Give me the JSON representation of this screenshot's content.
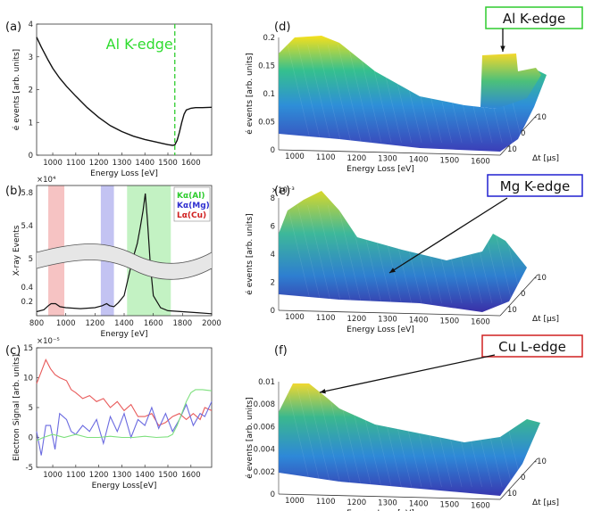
{
  "panel_labels": [
    "(a)",
    "(b)",
    "(c)",
    "(d)",
    "(e)",
    "(f)"
  ],
  "chart_data": [
    {
      "id": "a",
      "type": "line",
      "xlabel": "Energy Loss [eV]",
      "ylabel": "é events [arb. units]",
      "xlim": [
        930,
        1690
      ],
      "ylim": [
        0,
        4
      ],
      "xticks": [
        1000,
        1100,
        1200,
        1300,
        1400,
        1500,
        1600
      ],
      "yticks": [
        0,
        1,
        2,
        3,
        4
      ],
      "annotation": "Al K-edge",
      "edge_x": 1530,
      "series": [
        {
          "name": "spectrum",
          "x": [
            930,
            950,
            980,
            1000,
            1030,
            1060,
            1100,
            1150,
            1200,
            1250,
            1300,
            1350,
            1400,
            1450,
            1480,
            1500,
            1520,
            1530,
            1540,
            1550,
            1560,
            1570,
            1580,
            1600,
            1620,
            1650,
            1690
          ],
          "y": [
            3.6,
            3.3,
            2.9,
            2.65,
            2.35,
            2.1,
            1.8,
            1.45,
            1.15,
            0.9,
            0.72,
            0.58,
            0.48,
            0.4,
            0.35,
            0.32,
            0.3,
            0.31,
            0.45,
            0.7,
            1.0,
            1.25,
            1.38,
            1.43,
            1.45,
            1.45,
            1.46
          ]
        }
      ]
    },
    {
      "id": "b",
      "type": "line",
      "xlabel": "Energy [eV]",
      "ylabel": "X-ray Events",
      "xlim": [
        800,
        2000
      ],
      "xticks": [
        800,
        1000,
        1200,
        1400,
        1600,
        1800,
        2000
      ],
      "ytick_labels_upper": [
        "5.8",
        "5.4",
        "5"
      ],
      "ytick_labels_lower": [
        "0.4",
        "0.2"
      ],
      "exponent": "×10⁴",
      "bands": [
        {
          "name": "L_α(Cu)",
          "from": 880,
          "to": 990,
          "color": "#f4b8b8"
        },
        {
          "name": "K_α(Mg)",
          "from": 1240,
          "to": 1330,
          "color": "#b8b8f0"
        },
        {
          "name": "K_α(Al)",
          "from": 1420,
          "to": 1720,
          "color": "#b8f0b8"
        }
      ],
      "legend": [
        {
          "label": "Kα(Al)",
          "color": "#2fcc2f"
        },
        {
          "label": "Kα(Mg)",
          "color": "#2f2fd0"
        },
        {
          "label": "Lα(Cu)",
          "color": "#d02020"
        }
      ],
      "series": [
        {
          "name": "xray",
          "x": [
            800,
            850,
            880,
            900,
            930,
            960,
            1000,
            1100,
            1200,
            1250,
            1280,
            1300,
            1330,
            1360,
            1400,
            1440,
            1470,
            1490,
            1510,
            1530,
            1545,
            1560,
            1580,
            1600,
            1650,
            1700,
            1800,
            1900,
            2000
          ],
          "y": [
            0.04,
            0.06,
            0.1,
            0.12,
            0.12,
            0.09,
            0.08,
            0.07,
            0.08,
            0.1,
            0.12,
            0.1,
            0.09,
            0.13,
            0.2,
            0.45,
            0.62,
            0.72,
            0.88,
            1.05,
            1.22,
            0.95,
            0.5,
            0.2,
            0.08,
            0.05,
            0.04,
            0.03,
            0.02
          ],
          "note": "y in normalized display units (axis has a break)"
        }
      ]
    },
    {
      "id": "c",
      "type": "line",
      "xlabel": "Energy Loss[eV]",
      "ylabel": "Electron Signal [arb. units]",
      "xlim": [
        930,
        1690
      ],
      "ylim": [
        -5,
        15
      ],
      "xticks": [
        1000,
        1100,
        1200,
        1300,
        1400,
        1500,
        1600
      ],
      "yticks": [
        -5,
        0,
        5,
        10,
        15
      ],
      "exponent": "×10⁻⁵",
      "series": [
        {
          "name": "red",
          "color": "#e85a5a",
          "x": [
            930,
            950,
            970,
            990,
            1010,
            1030,
            1060,
            1080,
            1100,
            1130,
            1160,
            1190,
            1220,
            1250,
            1280,
            1310,
            1340,
            1370,
            1400,
            1430,
            1460,
            1490,
            1520,
            1550,
            1580,
            1610,
            1640,
            1660,
            1690
          ],
          "y": [
            9,
            11,
            13,
            11.5,
            10.5,
            10,
            9.5,
            8,
            7.5,
            6.5,
            7,
            6,
            6.5,
            5,
            6,
            4.5,
            5.5,
            3.5,
            3.5,
            4,
            2,
            2.5,
            3.5,
            4,
            3,
            4,
            3,
            5,
            4.5
          ]
        },
        {
          "name": "blue",
          "color": "#6a6ae0",
          "x": [
            930,
            950,
            970,
            990,
            1010,
            1030,
            1060,
            1080,
            1100,
            1130,
            1160,
            1190,
            1220,
            1250,
            1280,
            1310,
            1340,
            1370,
            1400,
            1430,
            1460,
            1490,
            1520,
            1550,
            1580,
            1610,
            1640,
            1660,
            1690
          ],
          "y": [
            1,
            -3,
            2,
            2,
            -2,
            4,
            3,
            1,
            0.5,
            2,
            1,
            3,
            -1,
            3.5,
            1,
            4,
            0,
            3,
            2,
            5,
            1.5,
            4,
            1,
            3,
            5.5,
            2,
            4,
            3.5,
            6
          ]
        },
        {
          "name": "green",
          "color": "#7de07d",
          "x": [
            930,
            960,
            1000,
            1050,
            1100,
            1150,
            1200,
            1250,
            1300,
            1350,
            1400,
            1450,
            1500,
            1520,
            1540,
            1560,
            1580,
            1600,
            1620,
            1650,
            1690
          ],
          "y": [
            -0.5,
            0,
            0.5,
            0,
            0.5,
            0,
            0,
            0.2,
            0,
            0,
            0.2,
            0,
            0.1,
            0.5,
            2,
            4,
            6,
            7.5,
            8,
            8,
            7.8
          ]
        }
      ]
    },
    {
      "id": "d",
      "type": "surface",
      "xlabel": "Energy Loss [eV]",
      "ylabel": "é events [arb. units]",
      "zlabel": "Δt [μs]",
      "xticks": [
        1000,
        1100,
        1200,
        1300,
        1400,
        1500,
        1600
      ],
      "yticks": [
        0,
        0.05,
        0.1,
        0.15,
        0.2
      ],
      "dticks": [
        -10,
        0,
        10
      ],
      "annotation": "Al K-edge",
      "annotation_color": "#2fcc2f"
    },
    {
      "id": "e",
      "type": "surface",
      "xlabel": "Energy Loss [eV]",
      "ylabel": "é events [arb. units]",
      "zlabel": "Δt [μs]",
      "xticks": [
        1000,
        1100,
        1200,
        1300,
        1400,
        1500,
        1600
      ],
      "yticks": [
        0,
        2,
        4,
        6,
        8
      ],
      "dticks": [
        -10,
        0,
        10
      ],
      "exponent": "×10⁻³",
      "annotation": "Mg K-edge",
      "annotation_color": "#2020d0"
    },
    {
      "id": "f",
      "type": "surface",
      "xlabel": "Energy Loss [eV]",
      "ylabel": "é events [arb. units]",
      "zlabel": "Δt [μs]",
      "xticks": [
        1000,
        1100,
        1200,
        1300,
        1400,
        1500,
        1600
      ],
      "yticks": [
        0,
        0.002,
        0.004,
        0.006,
        0.008,
        0.01
      ],
      "dticks": [
        -10,
        0,
        10
      ],
      "annotation": "Cu L-edge",
      "annotation_color": "#d02020"
    }
  ]
}
